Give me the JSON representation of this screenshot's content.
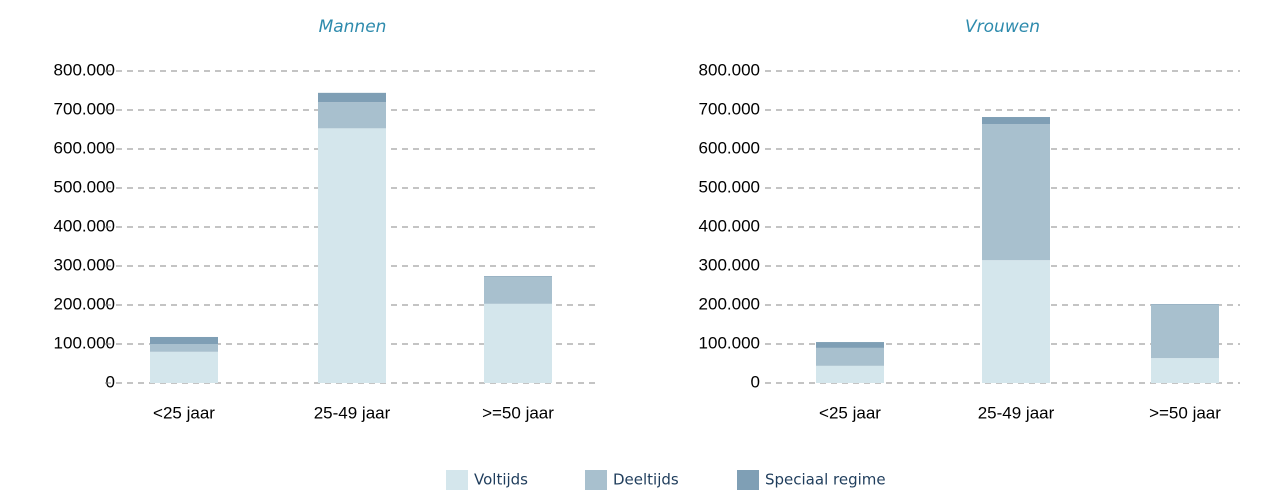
{
  "chart_data": [
    {
      "type": "bar",
      "stacked": true,
      "title": "Mannen",
      "categories": [
        "<25 jaar",
        "25-49 jaar",
        ">=50 jaar"
      ],
      "series": [
        {
          "name": "Voltijds",
          "color": "#d4e6ec",
          "values": [
            80000,
            653000,
            203000
          ]
        },
        {
          "name": "Deeltijds",
          "color": "#a8c0ce",
          "values": [
            20000,
            67000,
            69000
          ]
        },
        {
          "name": "Speciaal regime",
          "color": "#7f9fb5",
          "values": [
            18000,
            24000,
            2000
          ]
        }
      ],
      "ylim": [
        0,
        800000
      ],
      "yticks": [
        0,
        {
          "value": 100000,
          "label": "100.000"
        },
        {
          "value": 200000,
          "label": "200.000"
        },
        {
          "value": 300000,
          "label": "300.000"
        },
        {
          "value": 400000,
          "label": "400.000"
        },
        {
          "value": 500000,
          "label": "500.000"
        },
        {
          "value": 600000,
          "label": "600.000"
        },
        {
          "value": 700000,
          "label": "700.000"
        },
        {
          "value": 800000,
          "label": "800.000"
        }
      ],
      "grid": true
    },
    {
      "type": "bar",
      "stacked": true,
      "title": "Vrouwen",
      "categories": [
        "<25 jaar",
        "25-49 jaar",
        ">=50 jaar"
      ],
      "series": [
        {
          "name": "Voltijds",
          "color": "#d4e6ec",
          "values": [
            44000,
            315000,
            64000
          ]
        },
        {
          "name": "Deeltijds",
          "color": "#a8c0ce",
          "values": [
            46000,
            349000,
            136000
          ]
        },
        {
          "name": "Speciaal regime",
          "color": "#7f9fb5",
          "values": [
            15000,
            18000,
            2000
          ]
        }
      ],
      "ylim": [
        0,
        800000
      ],
      "yticks": [
        0,
        {
          "value": 100000,
          "label": "100.000"
        },
        {
          "value": 200000,
          "label": "200.000"
        },
        {
          "value": 300000,
          "label": "300.000"
        },
        {
          "value": 400000,
          "label": "400.000"
        },
        {
          "value": 500000,
          "label": "500.000"
        },
        {
          "value": 600000,
          "label": "600.000"
        },
        {
          "value": 700000,
          "label": "700.000"
        },
        {
          "value": 800000,
          "label": "800.000"
        }
      ],
      "grid": true
    }
  ]
}
